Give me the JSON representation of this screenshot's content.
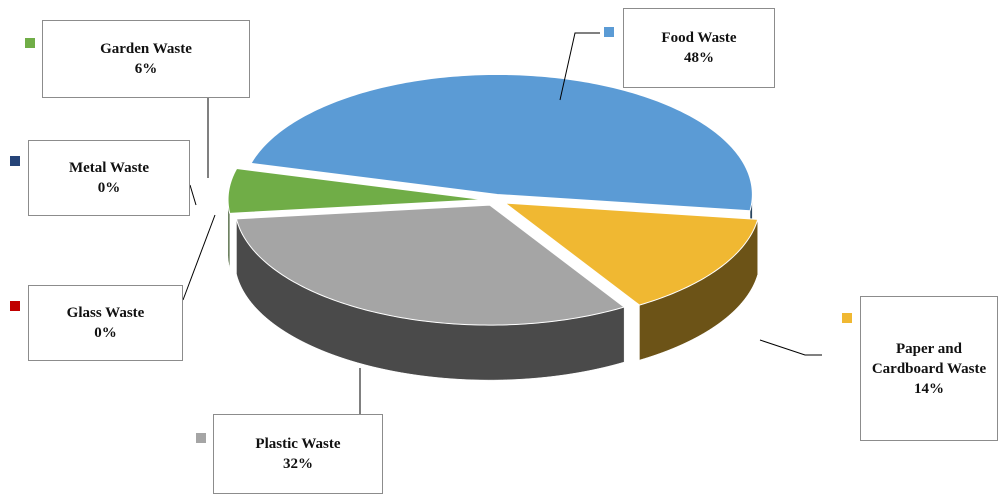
{
  "chart_data": {
    "type": "pie",
    "categories": [
      "Food Waste",
      "Paper and Cardboard Waste",
      "Plastic Waste",
      "Glass Waste",
      "Metal Waste",
      "Garden Waste"
    ],
    "values": [
      48,
      14,
      32,
      0,
      0,
      6
    ],
    "value_labels": [
      "48%",
      "14%",
      "32%",
      "0%",
      "0%",
      "6%"
    ],
    "colors": [
      "#5b9bd5",
      "#f0b832",
      "#a5a5a5",
      "#c00000",
      "#264478",
      "#70ad47"
    ]
  }
}
